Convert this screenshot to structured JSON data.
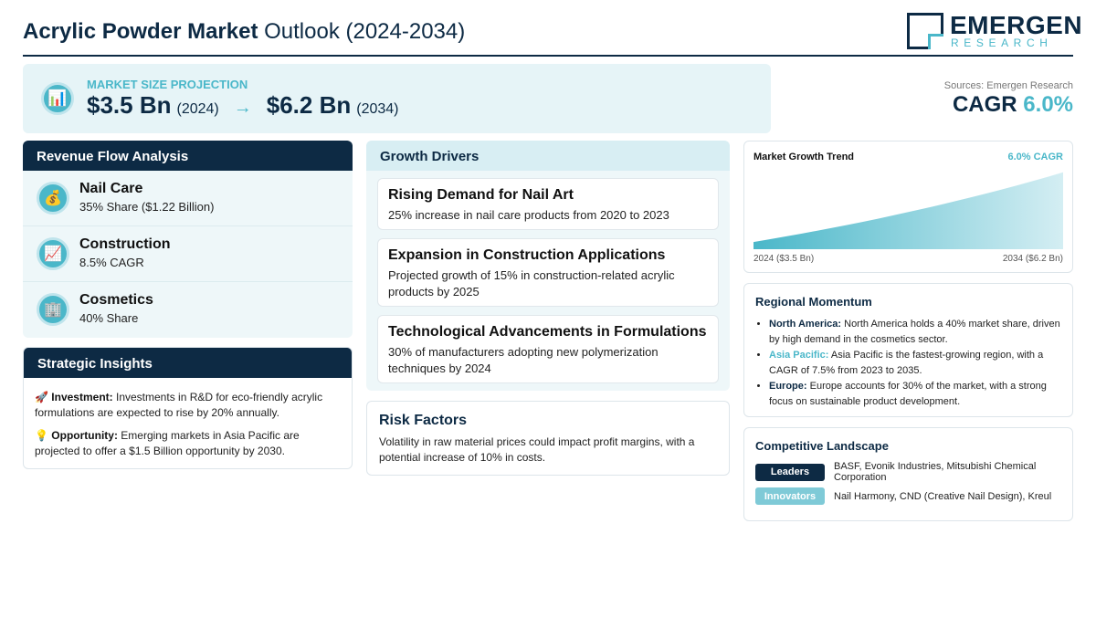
{
  "header": {
    "title_bold": "Acrylic Powder Market",
    "title_rest": "Outlook (2024-2034)",
    "logo_name": "EMERGEN",
    "logo_sub": "RESEARCH"
  },
  "projection": {
    "icon": "chart-icon",
    "label": "MARKET SIZE PROJECTION",
    "start_value": "$3.5 Bn",
    "start_year": "(2024)",
    "arrow": "→",
    "end_value": "$6.2 Bn",
    "end_year": "(2034)"
  },
  "source": "Sources: Emergen Research",
  "cagr": {
    "label": "CAGR",
    "value": "6.0%"
  },
  "revenue": {
    "title": "Revenue Flow Analysis",
    "items": [
      {
        "icon": "money-bag-icon",
        "title": "Nail Care",
        "sub": "35% Share ($1.22 Billion)"
      },
      {
        "icon": "chart-up-icon",
        "title": "Construction",
        "sub": "8.5% CAGR"
      },
      {
        "icon": "building-icon",
        "title": "Cosmetics",
        "sub": "40% Share"
      }
    ]
  },
  "insights": {
    "title": "Strategic Insights",
    "items": [
      {
        "icon": "rocket-icon",
        "label": "Investment:",
        "text": "Investments in R&D for eco-friendly acrylic formulations are expected to rise by 20% annually."
      },
      {
        "icon": "lightbulb-icon",
        "label": "Opportunity:",
        "text": "Emerging markets in Asia Pacific are projected to offer a $1.5 Billion opportunity by 2030."
      }
    ]
  },
  "drivers": {
    "title": "Growth Drivers",
    "items": [
      {
        "title": "Rising Demand for Nail Art",
        "text": "25% increase in nail care products from 2020 to 2023"
      },
      {
        "title": "Expansion in Construction Applications",
        "text": "Projected growth of 15% in construction-related acrylic products by 2025"
      },
      {
        "title": "Technological Advancements in Formulations",
        "text": "30% of manufacturers adopting new polymerization techniques by 2024"
      }
    ]
  },
  "risk": {
    "title": "Risk Factors",
    "text": "Volatility in raw material prices could impact profit margins, with a potential increase of 10% in costs."
  },
  "trend": {
    "title": "Market Growth Trend",
    "cagr_label": "6.0% CAGR",
    "left_label": "2024 ($3.5 Bn)",
    "right_label": "2034 ($6.2 Bn)"
  },
  "chart_data": {
    "type": "area",
    "x": [
      "2024",
      "2034"
    ],
    "values": [
      3.5,
      6.2
    ],
    "title": "Market Growth Trend",
    "grid": false
  },
  "regional": {
    "title": "Regional Momentum",
    "items": [
      {
        "region": "North America:",
        "text": "North America holds a 40% market share, driven by high demand in the cosmetics sector."
      },
      {
        "region": "Asia Pacific:",
        "text": "Asia Pacific is the fastest-growing region, with a CAGR of 7.5% from 2023 to 2035."
      },
      {
        "region": "Europe:",
        "text": "Europe accounts for 30% of the market, with a strong focus on sustainable product development."
      }
    ]
  },
  "landscape": {
    "title": "Competitive Landscape",
    "rows": [
      {
        "label": "Leaders",
        "text": "BASF, Evonik Industries, Mitsubishi Chemical Corporation"
      },
      {
        "label": "Innovators",
        "text": "Nail Harmony, CND (Creative Nail Design), Kreul"
      }
    ]
  },
  "colors": {
    "navy": "#0d2a44",
    "teal": "#4ab7c9",
    "light": "#e6f4f7"
  }
}
